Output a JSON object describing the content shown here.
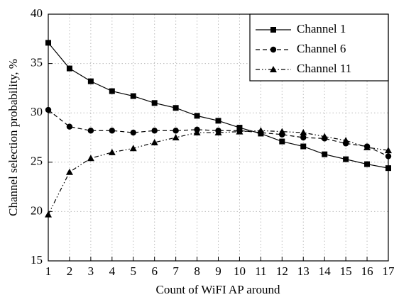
{
  "chart_data": {
    "type": "line",
    "x_label": "Count of WiFI AP around",
    "y_label": "Channel selection probability, %",
    "x": [
      1,
      2,
      3,
      4,
      5,
      6,
      7,
      8,
      9,
      10,
      11,
      12,
      13,
      14,
      15,
      16,
      17
    ],
    "series": [
      {
        "name": "Channel 1",
        "color": "#000000",
        "marker": "square",
        "dash": "solid",
        "values": [
          37.1,
          34.5,
          33.2,
          32.2,
          31.7,
          31.0,
          30.5,
          29.7,
          29.2,
          28.5,
          27.9,
          27.1,
          26.6,
          25.8,
          25.3,
          24.8,
          24.4
        ]
      },
      {
        "name": "Channel 6",
        "color": "#000000",
        "marker": "circle",
        "dash": "dashed",
        "values": [
          30.3,
          28.6,
          28.2,
          28.2,
          28.0,
          28.2,
          28.2,
          28.3,
          28.2,
          28.2,
          28.0,
          27.8,
          27.5,
          27.4,
          26.9,
          26.6,
          25.6
        ]
      },
      {
        "name": "Channel 11",
        "color": "#000000",
        "marker": "triangle",
        "dash": "dash-dot-dot",
        "values": [
          19.7,
          24.0,
          25.4,
          26.0,
          26.4,
          27.0,
          27.5,
          28.0,
          28.0,
          28.1,
          28.2,
          28.1,
          28.0,
          27.6,
          27.2,
          26.5,
          26.2
        ]
      }
    ],
    "xlim": [
      1,
      17
    ],
    "xticks": [
      1,
      2,
      3,
      4,
      5,
      6,
      7,
      8,
      9,
      10,
      11,
      12,
      13,
      14,
      15,
      16,
      17
    ],
    "ylim": [
      15,
      40
    ],
    "yticks": [
      15,
      20,
      25,
      30,
      35,
      40
    ],
    "grid": true,
    "legend": "upper-right"
  }
}
